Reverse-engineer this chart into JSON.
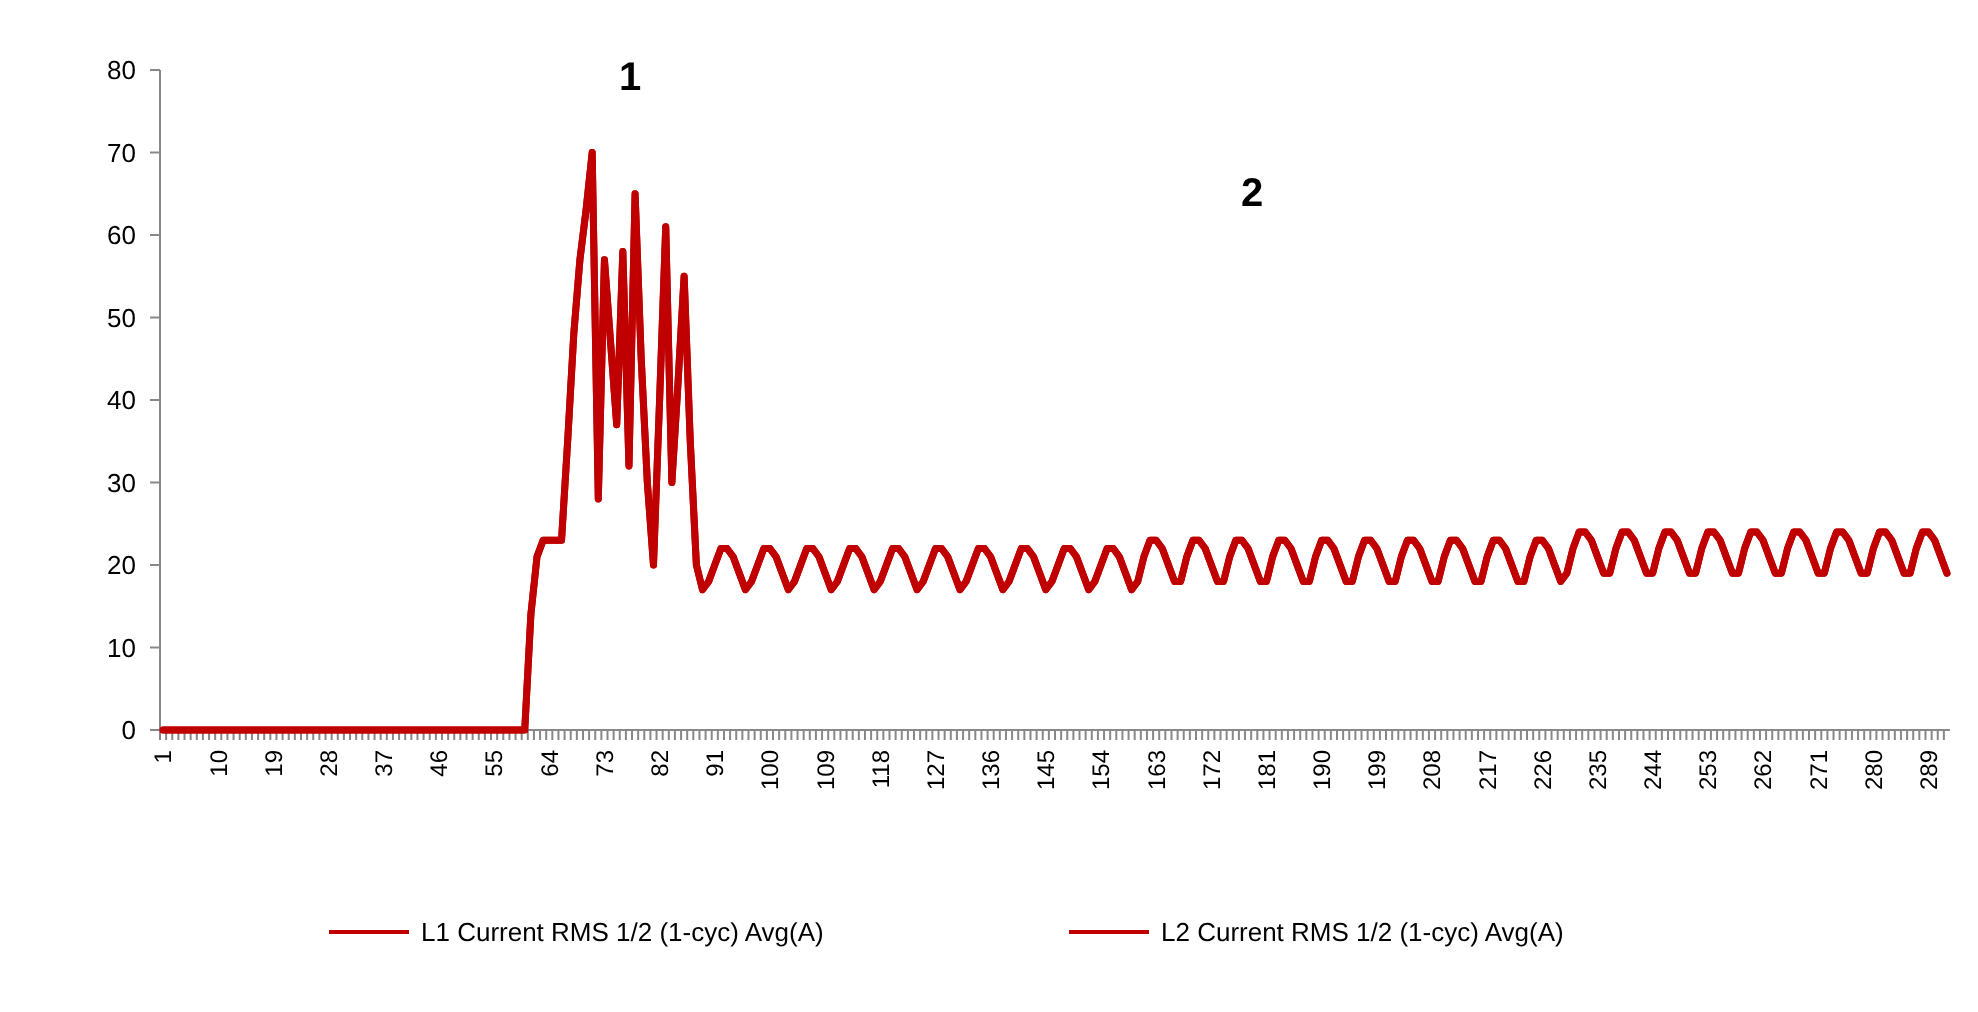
{
  "chart_data": {
    "type": "line",
    "categories": [
      "1",
      null,
      null,
      null,
      null,
      null,
      null,
      null,
      null,
      "10",
      null,
      null,
      null,
      null,
      null,
      null,
      null,
      null,
      "19",
      null,
      null,
      null,
      null,
      null,
      null,
      null,
      null,
      "28",
      null,
      null,
      null,
      null,
      null,
      null,
      null,
      null,
      "37",
      null,
      null,
      null,
      null,
      null,
      null,
      null,
      null,
      "46",
      null,
      null,
      null,
      null,
      null,
      null,
      null,
      null,
      "55",
      null,
      null,
      null,
      null,
      null,
      null,
      null,
      null,
      "64",
      null,
      null,
      null,
      null,
      null,
      null,
      null,
      null,
      "73",
      null,
      null,
      null,
      null,
      null,
      null,
      null,
      null,
      "82",
      null,
      null,
      null,
      null,
      null,
      null,
      null,
      null,
      "91",
      null,
      null,
      null,
      null,
      null,
      null,
      null,
      null,
      "100",
      null,
      null,
      null,
      null,
      null,
      null,
      null,
      null,
      "109",
      null,
      null,
      null,
      null,
      null,
      null,
      null,
      null,
      "118",
      null,
      null,
      null,
      null,
      null,
      null,
      null,
      null,
      "127",
      null,
      null,
      null,
      null,
      null,
      null,
      null,
      null,
      "136",
      null,
      null,
      null,
      null,
      null,
      null,
      null,
      null,
      "145",
      null,
      null,
      null,
      null,
      null,
      null,
      null,
      null,
      "154",
      null,
      null,
      null,
      null,
      null,
      null,
      null,
      null,
      "163",
      null,
      null,
      null,
      null,
      null,
      null,
      null,
      null,
      "172",
      null,
      null,
      null,
      null,
      null,
      null,
      null,
      null,
      "181",
      null,
      null,
      null,
      null,
      null,
      null,
      null,
      null,
      "190",
      null,
      null,
      null,
      null,
      null,
      null,
      null,
      null,
      "199",
      null,
      null,
      null,
      null,
      null,
      null,
      null,
      null,
      "208",
      null,
      null,
      null,
      null,
      null,
      null,
      null,
      null,
      "217",
      null,
      null,
      null,
      null,
      null,
      null,
      null,
      null,
      "226",
      null,
      null,
      null,
      null,
      null,
      null,
      null,
      null,
      "235",
      null,
      null,
      null,
      null,
      null,
      null,
      null,
      null,
      "244",
      null,
      null,
      null,
      null,
      null,
      null,
      null,
      null,
      "253",
      null,
      null,
      null,
      null,
      null,
      null,
      null,
      null,
      "262",
      null,
      null,
      null,
      null,
      null,
      null,
      null,
      null,
      "271",
      null,
      null,
      null,
      null,
      null,
      null,
      null,
      null,
      "280",
      null,
      null,
      null,
      null,
      null,
      null,
      null,
      null,
      "289",
      null,
      null,
      null
    ],
    "series": [
      {
        "name": "L1 Current RMS 1/2 (1-cyc) Avg(A)",
        "color": "#c00000",
        "values": [
          0,
          0,
          0,
          0,
          0,
          0,
          0,
          0,
          0,
          0,
          0,
          0,
          0,
          0,
          0,
          0,
          0,
          0,
          0,
          0,
          0,
          0,
          0,
          0,
          0,
          0,
          0,
          0,
          0,
          0,
          0,
          0,
          0,
          0,
          0,
          0,
          0,
          0,
          0,
          0,
          0,
          0,
          0,
          0,
          0,
          0,
          0,
          0,
          0,
          0,
          0,
          0,
          0,
          0,
          0,
          0,
          0,
          0,
          0,
          0,
          14,
          21,
          23,
          23,
          23,
          23,
          35,
          48,
          57,
          63,
          70,
          28,
          57,
          47,
          37,
          58,
          32,
          65,
          45,
          30,
          20,
          40,
          61,
          30,
          42,
          55,
          35,
          20,
          17,
          18,
          20,
          22,
          22,
          21,
          19,
          17,
          18,
          20,
          22,
          22,
          21,
          19,
          17,
          18,
          20,
          22,
          22,
          21,
          19,
          17,
          18,
          20,
          22,
          22,
          21,
          19,
          17,
          18,
          20,
          22,
          22,
          21,
          19,
          17,
          18,
          20,
          22,
          22,
          21,
          19,
          17,
          18,
          20,
          22,
          22,
          21,
          19,
          17,
          18,
          20,
          22,
          22,
          21,
          19,
          17,
          18,
          20,
          22,
          22,
          21,
          19,
          17,
          18,
          20,
          22,
          22,
          21,
          19,
          17,
          18,
          21,
          23,
          23,
          22,
          20,
          18,
          18,
          21,
          23,
          23,
          22,
          20,
          18,
          18,
          21,
          23,
          23,
          22,
          20,
          18,
          18,
          21,
          23,
          23,
          22,
          20,
          18,
          18,
          21,
          23,
          23,
          22,
          20,
          18,
          18,
          21,
          23,
          23,
          22,
          20,
          18,
          18,
          21,
          23,
          23,
          22,
          20,
          18,
          18,
          21,
          23,
          23,
          22,
          20,
          18,
          18,
          21,
          23,
          23,
          22,
          20,
          18,
          18,
          21,
          23,
          23,
          22,
          20,
          18,
          19,
          22,
          24,
          24,
          23,
          21,
          19,
          19,
          22,
          24,
          24,
          23,
          21,
          19,
          19,
          22,
          24,
          24,
          23,
          21,
          19,
          19,
          22,
          24,
          24,
          23,
          21,
          19,
          19,
          22,
          24,
          24,
          23,
          21,
          19,
          19,
          22,
          24,
          24,
          23,
          21,
          19,
          19,
          22,
          24,
          24,
          23,
          21,
          19,
          19,
          22,
          24,
          24,
          23,
          21,
          19,
          19,
          22,
          24,
          24,
          23,
          21,
          19
        ]
      },
      {
        "name": "L2 Current RMS 1/2 (1-cyc) Avg(A)",
        "color": "#c00000",
        "values": [
          0,
          0,
          0,
          0,
          0,
          0,
          0,
          0,
          0,
          0,
          0,
          0,
          0,
          0,
          0,
          0,
          0,
          0,
          0,
          0,
          0,
          0,
          0,
          0,
          0,
          0,
          0,
          0,
          0,
          0,
          0,
          0,
          0,
          0,
          0,
          0,
          0,
          0,
          0,
          0,
          0,
          0,
          0,
          0,
          0,
          0,
          0,
          0,
          0,
          0,
          0,
          0,
          0,
          0,
          0,
          0,
          0,
          0,
          0,
          0,
          14,
          21,
          23,
          23,
          23,
          23,
          35,
          48,
          57,
          63,
          70,
          28,
          57,
          47,
          37,
          58,
          32,
          65,
          45,
          30,
          20,
          40,
          61,
          30,
          42,
          55,
          35,
          20,
          17,
          18,
          20,
          22,
          22,
          21,
          19,
          17,
          18,
          20,
          22,
          22,
          21,
          19,
          17,
          18,
          20,
          22,
          22,
          21,
          19,
          17,
          18,
          20,
          22,
          22,
          21,
          19,
          17,
          18,
          20,
          22,
          22,
          21,
          19,
          17,
          18,
          20,
          22,
          22,
          21,
          19,
          17,
          18,
          20,
          22,
          22,
          21,
          19,
          17,
          18,
          20,
          22,
          22,
          21,
          19,
          17,
          18,
          20,
          22,
          22,
          21,
          19,
          17,
          18,
          20,
          22,
          22,
          21,
          19,
          17,
          18,
          21,
          23,
          23,
          22,
          20,
          18,
          18,
          21,
          23,
          23,
          22,
          20,
          18,
          18,
          21,
          23,
          23,
          22,
          20,
          18,
          18,
          21,
          23,
          23,
          22,
          20,
          18,
          18,
          21,
          23,
          23,
          22,
          20,
          18,
          18,
          21,
          23,
          23,
          22,
          20,
          18,
          18,
          21,
          23,
          23,
          22,
          20,
          18,
          18,
          21,
          23,
          23,
          22,
          20,
          18,
          18,
          21,
          23,
          23,
          22,
          20,
          18,
          18,
          21,
          23,
          23,
          22,
          20,
          18,
          19,
          22,
          24,
          24,
          23,
          21,
          19,
          19,
          22,
          24,
          24,
          23,
          21,
          19,
          19,
          22,
          24,
          24,
          23,
          21,
          19,
          19,
          22,
          24,
          24,
          23,
          21,
          19,
          19,
          22,
          24,
          24,
          23,
          21,
          19,
          19,
          22,
          24,
          24,
          23,
          21,
          19,
          19,
          22,
          24,
          24,
          23,
          21,
          19,
          19,
          22,
          24,
          24,
          23,
          21,
          19,
          19,
          22,
          24,
          24,
          23,
          21,
          19
        ]
      }
    ],
    "ylim": [
      0,
      80
    ],
    "yticks": [
      0,
      10,
      20,
      30,
      40,
      50,
      60,
      70,
      80
    ],
    "grid": false,
    "legend": "bottom",
    "annotations": [
      "1",
      "2"
    ]
  }
}
